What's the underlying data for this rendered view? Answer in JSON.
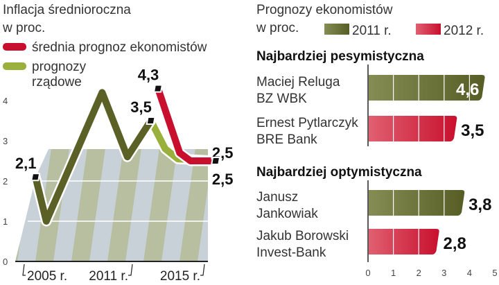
{
  "chart_data": [
    {
      "type": "line",
      "title": "Inflacja średnioroczna",
      "subtitle": "w proc.",
      "ylim": [
        0,
        4.6
      ],
      "yticks": [
        "0",
        "1",
        "2",
        "3",
        "4"
      ],
      "xticks": [
        {
          "label": "2005 r.",
          "year": 2005
        },
        {
          "label": "2011 r.",
          "year": 2011
        },
        {
          "label": "2015 r.",
          "year": 2015
        }
      ],
      "legend": [
        {
          "name": "średnia prognoz ekonomistów",
          "color": "#c8102e"
        },
        {
          "name": "prognozy",
          "name2": "rządowe",
          "color": "#9ab03c"
        }
      ],
      "series": [
        {
          "name": "inflacja",
          "color": "#5b6126",
          "x": [
            2005.7,
            2006.3,
            2009.4,
            2010.8,
            2012.1
          ],
          "y": [
            2.1,
            1.0,
            4.2,
            2.6,
            3.5
          ]
        },
        {
          "name": "prognozy rządowe",
          "color": "#9ab03c",
          "x": [
            2012.1,
            2012.9,
            2013.6,
            2015.7
          ],
          "y": [
            3.5,
            2.8,
            2.55,
            2.5
          ]
        },
        {
          "name": "średnia prognoz ekonomistów",
          "color": "#c8102e",
          "x": [
            2012.5,
            2013.7,
            2014.3,
            2015.7
          ],
          "y": [
            4.3,
            2.7,
            2.5,
            2.5
          ]
        }
      ],
      "labels": [
        {
          "text": "2,1",
          "x": 2005.7,
          "y": 2.1
        },
        {
          "text": "3,5",
          "x": 2012.1,
          "y": 3.5
        },
        {
          "text": "4,3",
          "x": 2012.5,
          "y": 4.3
        },
        {
          "text": "2,5",
          "x": 2015.7,
          "y": 2.5,
          "pos": "above"
        },
        {
          "text": "2,5",
          "x": 2015.7,
          "y": 2.5,
          "pos": "below"
        }
      ]
    },
    {
      "type": "bar",
      "title": "Prognozy ekonomistów",
      "subtitle": "w proc.",
      "legend": [
        {
          "name": "2011 r.",
          "color": "#5b6126"
        },
        {
          "name": "2012 r.",
          "color": "#c8102e"
        }
      ],
      "xlim": [
        0,
        5
      ],
      "xticks": [
        "0",
        "1",
        "2",
        "3",
        "4",
        "5"
      ],
      "groups": [
        {
          "title": "Najbardziej pesymistyczna",
          "items": [
            {
              "name": "Maciej Reluga",
              "org": "BZ WBK",
              "series": "2011 r.",
              "value": 4.6,
              "label": "4,6"
            },
            {
              "name": "Ernest Pytlarczyk",
              "org": "BRE Bank",
              "series": "2012 r.",
              "value": 3.5,
              "label": "3,5"
            }
          ]
        },
        {
          "title": "Najbardziej optymistyczna",
          "items": [
            {
              "name": "Janusz",
              "org": "Jankowiak",
              "series": "2011 r.",
              "value": 3.8,
              "label": "3,8"
            },
            {
              "name": "Jakub Borowski",
              "org": "Invest-Bank",
              "series": "2012 r.",
              "value": 2.8,
              "label": "2,8"
            }
          ]
        }
      ]
    }
  ]
}
